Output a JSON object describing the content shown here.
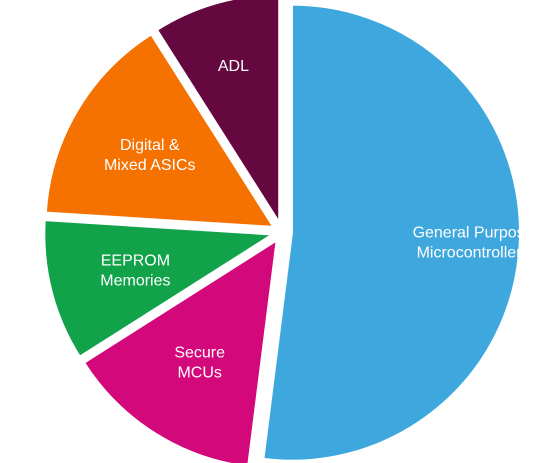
{
  "chart_data": {
    "type": "pie",
    "title": "",
    "slices": [
      {
        "label_lines": [
          "General Purpose",
          "Microcontrollers"
        ],
        "value": 52,
        "color": "#3ea7dd"
      },
      {
        "label_lines": [
          "Secure",
          "MCUs"
        ],
        "value": 14,
        "color": "#d3087a"
      },
      {
        "label_lines": [
          "EEPROM",
          "Memories"
        ],
        "value": 10,
        "color": "#11a24a"
      },
      {
        "label_lines": [
          "Digital &",
          "Mixed ASICs"
        ],
        "value": 15,
        "color": "#f57100"
      },
      {
        "label_lines": [
          "ADL"
        ],
        "value": 9,
        "color": "#650840"
      }
    ]
  }
}
